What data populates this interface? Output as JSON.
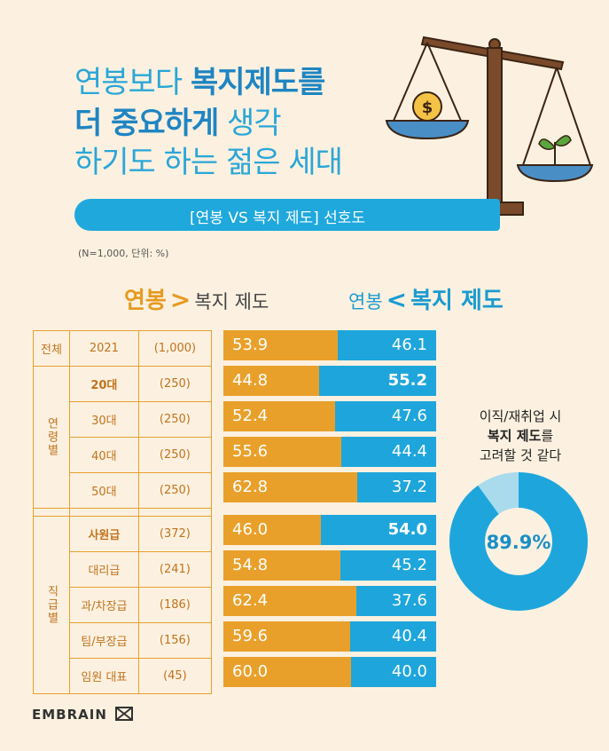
{
  "title": {
    "line1_normal": "연봉보다 ",
    "line1_bold": "복지제도를",
    "line2_bold": "더 중요하게",
    "line2_normal": " 생각",
    "line3": "하기도 하는 젊은 세대"
  },
  "banner": "[연봉 VS 복지 제도] 선호도",
  "note": "(N=1,000, 단위: %)",
  "legend": {
    "left_big": "연봉",
    "left_sym": ">",
    "left_small": "복지 제도",
    "right_small": "연봉",
    "right_sym": "<",
    "right_big": "복지 제도"
  },
  "groups": {
    "age": "연령별",
    "position": "직급별"
  },
  "donut": {
    "line1": "이직/재취업 시",
    "line2_bold": "복지 제도",
    "line2_rest": "를",
    "line3": "고려할 것 같다",
    "value_label": "89.9%"
  },
  "logo": "EMBRAIN",
  "colors": {
    "orange": "#e9a02a",
    "blue": "#1ea6dc",
    "light_blue": "#a9dbec",
    "bg": "#fcf1e0"
  },
  "chart_data": [
    {
      "type": "bar",
      "stacked": true,
      "categories": [
        "전체 2021 (1,000)",
        "20대 (250)",
        "30대 (250)",
        "40대 (250)",
        "50대 (250)",
        "사원급 (372)",
        "대리급 (241)",
        "과/차장급 (186)",
        "팀/부장급 (156)",
        "임원 대표 (45)"
      ],
      "rows": [
        {
          "c1": "전체",
          "c2": "2021",
          "c3": "(1,000)",
          "salary": 53.9,
          "welfare": 46.1,
          "bold": false
        },
        {
          "c1": "",
          "c2": "20대",
          "c3": "(250)",
          "salary": 44.8,
          "welfare": 55.2,
          "bold": true
        },
        {
          "c1": "",
          "c2": "30대",
          "c3": "(250)",
          "salary": 52.4,
          "welfare": 47.6,
          "bold": false
        },
        {
          "c1": "",
          "c2": "40대",
          "c3": "(250)",
          "salary": 55.6,
          "welfare": 44.4,
          "bold": false
        },
        {
          "c1": "",
          "c2": "50대",
          "c3": "(250)",
          "salary": 62.8,
          "welfare": 37.2,
          "bold": false
        },
        {
          "c1": "",
          "c2": "사원급",
          "c3": "(372)",
          "salary": 46.0,
          "welfare": 54.0,
          "bold": true
        },
        {
          "c1": "",
          "c2": "대리급",
          "c3": "(241)",
          "salary": 54.8,
          "welfare": 45.2,
          "bold": false
        },
        {
          "c1": "",
          "c2": "과/차장급",
          "c3": "(186)",
          "salary": 62.4,
          "welfare": 37.6,
          "bold": false
        },
        {
          "c1": "",
          "c2": "팀/부장급",
          "c3": "(156)",
          "salary": 59.6,
          "welfare": 40.4,
          "bold": false
        },
        {
          "c1": "",
          "c2": "임원 대표",
          "c3": "(45)",
          "salary": 60.0,
          "welfare": 40.0,
          "bold": false
        }
      ],
      "series": [
        {
          "name": "연봉",
          "values": [
            53.9,
            44.8,
            52.4,
            55.6,
            62.8,
            46.0,
            54.8,
            62.4,
            59.6,
            60.0
          ]
        },
        {
          "name": "복지 제도",
          "values": [
            46.1,
            55.2,
            47.6,
            44.4,
            37.2,
            54.0,
            45.2,
            37.6,
            40.4,
            40.0
          ]
        }
      ],
      "ylim": [
        0,
        100
      ]
    },
    {
      "type": "pie",
      "donut": true,
      "values": [
        89.9,
        10.1
      ]
    }
  ]
}
